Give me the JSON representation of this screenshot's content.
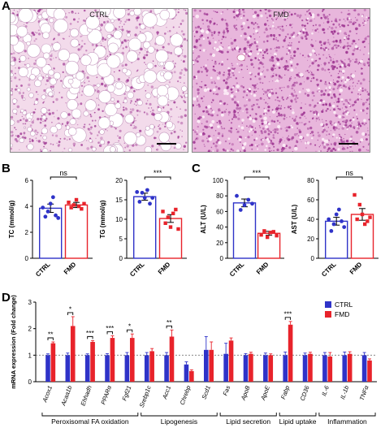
{
  "panels": {
    "a": "A",
    "b": "B",
    "c": "C",
    "d": "D"
  },
  "histology": {
    "left_label": "CTRL",
    "right_label": "FMD"
  },
  "colors": {
    "ctrl": "#2f33c8",
    "fmd": "#e8232b",
    "tissue_bg": "#f3dbeb",
    "tissue_dark": "#9a2f8e"
  },
  "chart_data": [
    {
      "type": "bar",
      "ylabel": "TC (mmol/g)",
      "categories": [
        "CTRL",
        "FMD"
      ],
      "values": [
        3.85,
        4.1
      ],
      "errors": [
        0.32,
        0.2
      ],
      "ylim": [
        0,
        6
      ],
      "yticks": [
        "0",
        "2",
        "4",
        "6"
      ],
      "points": [
        [
          3.9,
          3.2,
          3.6,
          4.2,
          4.7,
          3.3,
          3.1
        ],
        [
          4.3,
          3.9,
          4.1,
          4.5,
          4.0,
          3.8,
          4.2
        ]
      ],
      "significance": "ns"
    },
    {
      "type": "bar",
      "ylabel": "TG (mmol/g)",
      "categories": [
        "CTRL",
        "FMD"
      ],
      "values": [
        15.8,
        10.2
      ],
      "errors": [
        0.9,
        1.0
      ],
      "ylim": [
        0,
        20
      ],
      "yticks": [
        "0",
        "5",
        "10",
        "15",
        "20"
      ],
      "points": [
        [
          17.0,
          14.5,
          16.8,
          15.5,
          17.5,
          14.0,
          15.5
        ],
        [
          12.0,
          9.0,
          10.5,
          8.0,
          11.5,
          12.5,
          7.5
        ]
      ],
      "significance": "***"
    },
    {
      "type": "bar",
      "ylabel": "ALT (U/L)",
      "categories": [
        "CTRL",
        "FMD"
      ],
      "values": [
        71,
        32
      ],
      "errors": [
        5,
        2.5
      ],
      "ylim": [
        0,
        100
      ],
      "yticks": [
        "0",
        "20",
        "40",
        "60",
        "80",
        "100"
      ],
      "points": [
        [
          80,
          62,
          68,
          75,
          70
        ],
        [
          30,
          35,
          27,
          33,
          34,
          29
        ]
      ],
      "significance": "***"
    },
    {
      "type": "bar",
      "ylabel": "AST (U/L)",
      "categories": [
        "CTRL",
        "FMD"
      ],
      "values": [
        38,
        45
      ],
      "errors": [
        4,
        6
      ],
      "ylim": [
        0,
        80
      ],
      "yticks": [
        "0",
        "20",
        "40",
        "60",
        "80"
      ],
      "points": [
        [
          40,
          28,
          35,
          45,
          50,
          38,
          32
        ],
        [
          65,
          40,
          55,
          45,
          35,
          38,
          42
        ]
      ],
      "significance": "ns"
    },
    {
      "type": "bar",
      "ylabel": "mRNA expression (Fold change)",
      "ylim": [
        0,
        3
      ],
      "yticks": [
        "0",
        "1",
        "2",
        "3"
      ],
      "legend": [
        "CTRL",
        "FMD"
      ],
      "categories": [
        "Acox1",
        "Acaa1b",
        "Ehhadh",
        "PPARα",
        "Fgf21",
        "Srebp1c",
        "Acc1",
        "Chrebp",
        "Scd1",
        "Fas",
        "ApoB",
        "ApoE",
        "Fabp",
        "CD36",
        "IL-6",
        "IL-1b",
        "TNFα"
      ],
      "series": [
        {
          "name": "CTRL",
          "values": [
            1.0,
            1.0,
            1.0,
            1.0,
            1.0,
            1.0,
            1.0,
            0.65,
            1.2,
            1.05,
            1.0,
            1.0,
            1.0,
            1.0,
            1.0,
            1.0,
            1.0
          ],
          "errors": [
            0.05,
            0.08,
            0.05,
            0.06,
            0.1,
            0.1,
            0.1,
            0.1,
            0.5,
            0.4,
            0.06,
            0.08,
            0.12,
            0.08,
            0.1,
            0.12,
            0.1
          ]
        },
        {
          "name": "FMD",
          "values": [
            1.45,
            2.1,
            1.5,
            1.65,
            1.65,
            1.15,
            1.7,
            0.4,
            1.2,
            1.55,
            1.05,
            1.0,
            2.15,
            1.05,
            0.95,
            1.05,
            0.8
          ],
          "errors": [
            0.05,
            0.35,
            0.05,
            0.08,
            0.15,
            0.1,
            0.25,
            0.05,
            0.3,
            0.1,
            0.06,
            0.05,
            0.12,
            0.06,
            0.15,
            0.08,
            0.06
          ]
        }
      ],
      "significance": [
        {
          "category": "Acox1",
          "label": "**"
        },
        {
          "category": "Acaa1b",
          "label": "*"
        },
        {
          "category": "Ehhadh",
          "label": "***"
        },
        {
          "category": "PPARα",
          "label": "***"
        },
        {
          "category": "Fgf21",
          "label": "*"
        },
        {
          "category": "Acc1",
          "label": "**"
        },
        {
          "category": "Fabp",
          "label": "***"
        }
      ],
      "groups": [
        {
          "label": "Peroxisomal FA oxidation",
          "from": "Acox1",
          "to": "Fgf21"
        },
        {
          "label": "Lipogenesis",
          "from": "Srebp1c",
          "to": "Scd1"
        },
        {
          "label": "Lipid secretion",
          "from": "Fas",
          "to": "ApoE"
        },
        {
          "label": "Lipid uptake",
          "from": "Fabp",
          "to": "CD36"
        },
        {
          "label": "Inflammation",
          "from": "IL-6",
          "to": "TNFα"
        }
      ]
    }
  ]
}
